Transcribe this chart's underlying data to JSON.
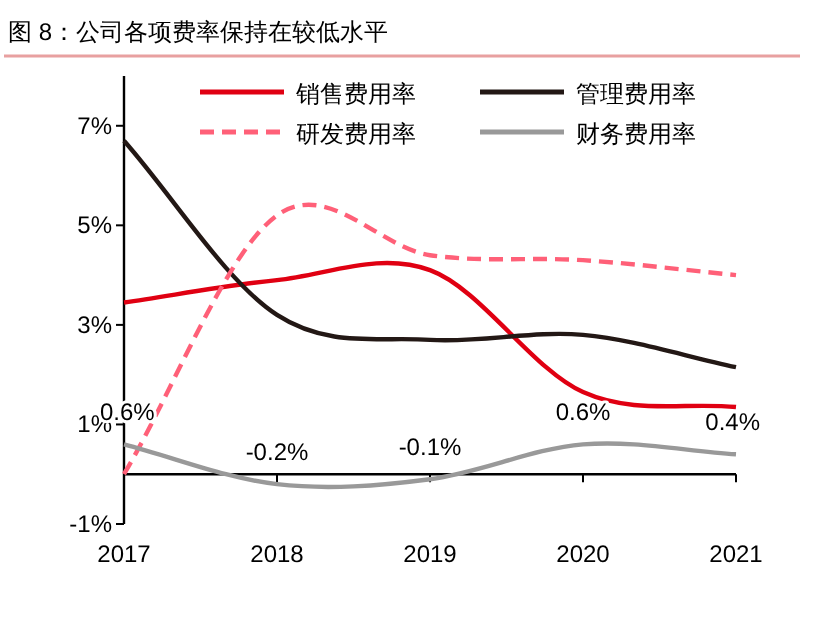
{
  "chart_data": {
    "type": "line",
    "title": "图 8：公司各项费率保持在较低水平",
    "categories": [
      "2017",
      "2018",
      "2019",
      "2020",
      "2021"
    ],
    "series": [
      {
        "name": "销售费用率",
        "color": "#e00012",
        "values": [
          3.45,
          3.9,
          4.1,
          1.65,
          1.35
        ]
      },
      {
        "name": "管理费用率",
        "color": "#231815",
        "values": [
          6.7,
          3.2,
          2.7,
          2.8,
          2.15
        ]
      },
      {
        "name": "研发费用率",
        "color": "#ff6078",
        "line_style": "dashed",
        "values": [
          0,
          5.2,
          4.4,
          4.3,
          4.0
        ]
      },
      {
        "name": "财务费用率",
        "color": "#999999",
        "values": [
          0.6,
          -0.2,
          -0.1,
          0.6,
          0.4
        ],
        "value_labels": [
          "0.6%",
          "-0.2%",
          "-0.1%",
          "0.6%",
          "0.4%"
        ]
      }
    ],
    "ylim": [
      -1,
      8
    ],
    "yticks": [
      {
        "value": -1,
        "label": "-1%"
      },
      {
        "value": 1,
        "label": "1%"
      },
      {
        "value": 3,
        "label": "3%"
      },
      {
        "value": 5,
        "label": "5%"
      },
      {
        "value": 7,
        "label": "7%"
      }
    ],
    "legend": "top",
    "grid": false,
    "marker": "none"
  }
}
